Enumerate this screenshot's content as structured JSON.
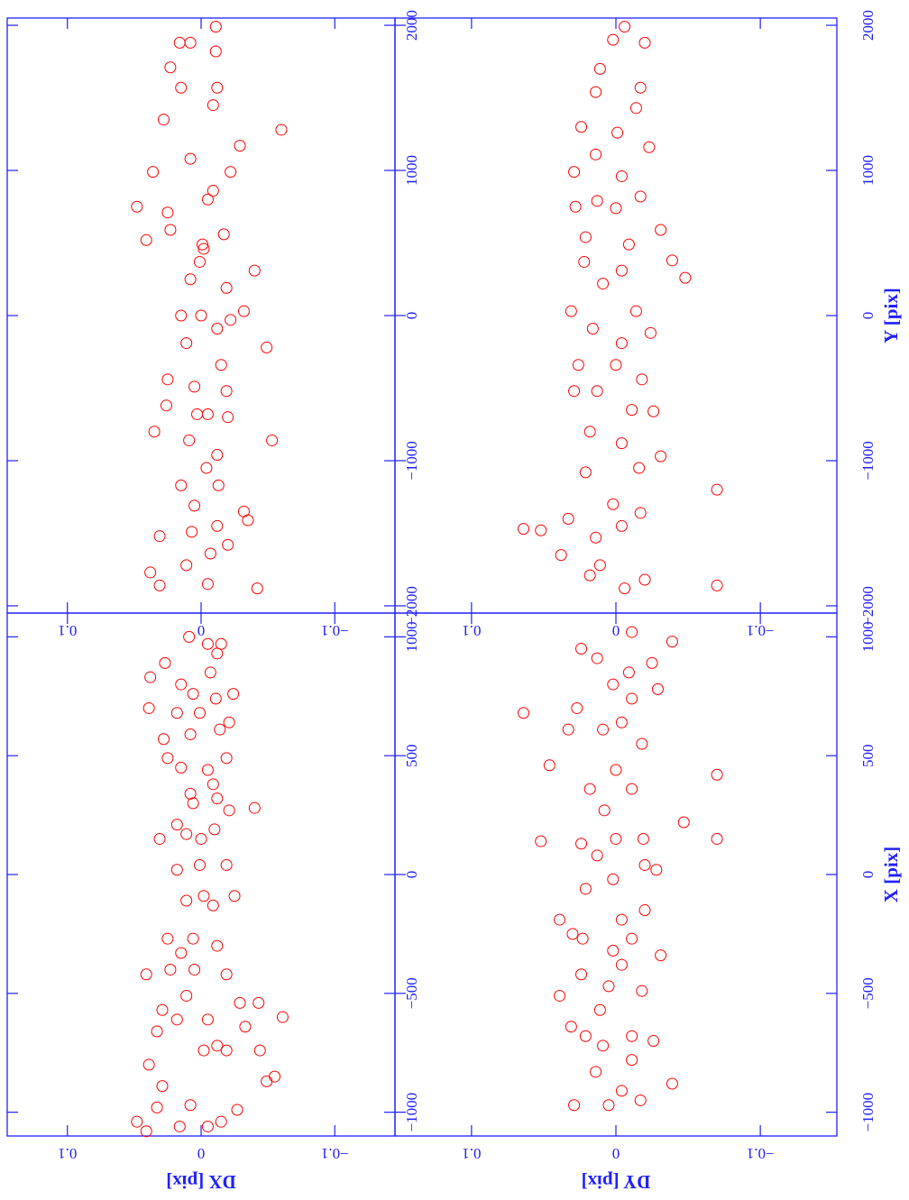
{
  "chart_data": [
    {
      "type": "scatter",
      "color": "#ff0000",
      "ylabel": "DX [pix]",
      "xlim": [
        -1100,
        1100
      ],
      "xticks": [
        {
          "value": -1000,
          "label": "−1000"
        },
        {
          "value": -500,
          "label": "−500"
        },
        0,
        500,
        1000
      ],
      "ylim": [
        -0.145,
        0.145
      ],
      "yticks": [
        {
          "value": -0.1,
          "label": "−0.1"
        },
        0,
        0.1
      ],
      "x": [
        -1040,
        -1080,
        -980,
        -800,
        -890,
        -1060,
        -1060,
        -1040,
        -970,
        -990,
        -870,
        -850,
        -740,
        -600,
        -740,
        -640,
        -720,
        -740,
        -610,
        -570,
        -660,
        -610,
        -540,
        -540,
        -510,
        -400,
        -420,
        -400,
        -420,
        -330,
        -300,
        -270,
        -270,
        -130,
        -90,
        -110,
        20,
        40,
        40,
        -90,
        150,
        170,
        190,
        210,
        150,
        270,
        300,
        320,
        280,
        380,
        340,
        450,
        490,
        440,
        490,
        610,
        640,
        590,
        570,
        680,
        700,
        680,
        740,
        760,
        760,
        850,
        930,
        800,
        830,
        1000,
        970,
        970,
        890
      ],
      "values": [
        0.048,
        0.041,
        0.033,
        0.039,
        0.029,
        0.016,
        -0.005,
        -0.015,
        0.008,
        -0.027,
        -0.049,
        -0.055,
        -0.044,
        -0.061,
        -0.019,
        -0.033,
        -0.012,
        -0.002,
        0.018,
        0.029,
        0.033,
        -0.005,
        -0.029,
        -0.043,
        0.011,
        0.005,
        -0.019,
        0.023,
        0.041,
        0.015,
        -0.012,
        0.025,
        0.006,
        -0.009,
        -0.025,
        0.011,
        0.018,
        0.001,
        -0.019,
        -0.002,
        0,
        0.011,
        -0.01,
        0.018,
        0.031,
        -0.021,
        0.006,
        -0.012,
        -0.04,
        -0.009,
        0.008,
        0.015,
        -0.019,
        -0.005,
        0.025,
        -0.014,
        -0.021,
        0.008,
        0.028,
        0.018,
        0.039,
        0.001,
        -0.011,
        -0.024,
        0.006,
        -0.007,
        -0.012,
        0.015,
        0.038,
        0.009,
        -0.005,
        -0.015,
        0.027
      ]
    },
    {
      "type": "scatter",
      "color": "#ff0000",
      "xlim": [
        -2050,
        2050
      ],
      "xticks": [
        {
          "value": -2000,
          "label": "−2000"
        },
        {
          "value": -1000,
          "label": "−1000"
        },
        0,
        1000,
        2000
      ],
      "ylim": [
        -0.145,
        0.145
      ],
      "yticks": [
        {
          "value": -0.1,
          "label": "−0.1"
        },
        0,
        0.1
      ],
      "x": [
        1990,
        1880,
        1880,
        1710,
        1570,
        1570,
        1280,
        1350,
        1450,
        1170,
        1080,
        990,
        990,
        860,
        750,
        710,
        800,
        520,
        560,
        460,
        310,
        370,
        190,
        250,
        30,
        0,
        -30,
        -90,
        -220,
        -190,
        -340,
        -440,
        -490,
        -520,
        -620,
        -680,
        -700,
        -800,
        -860,
        -860,
        -960,
        -1050,
        -1170,
        -1170,
        -1310,
        -1410,
        -1520,
        -1450,
        -1490,
        -1640,
        -1720,
        -1770,
        -1880,
        -1860,
        -1850,
        -1580,
        -1350,
        -680,
        490,
        0,
        590,
        1820
      ],
      "values": [
        -0.011,
        0.016,
        0.008,
        0.023,
        -0.012,
        0.015,
        -0.06,
        0.028,
        -0.009,
        -0.029,
        0.008,
        0.036,
        -0.022,
        -0.009,
        0.048,
        0.025,
        -0.005,
        0.041,
        -0.017,
        -0.002,
        -0.04,
        0.001,
        -0.019,
        0.008,
        -0.032,
        0.015,
        -0.022,
        -0.012,
        -0.049,
        0.011,
        -0.015,
        0.025,
        0.005,
        -0.019,
        0.026,
        -0.005,
        -0.02,
        0.035,
        0.009,
        -0.053,
        -0.012,
        -0.004,
        -0.013,
        0.015,
        0.005,
        -0.035,
        0.031,
        -0.012,
        0.007,
        -0.007,
        0.011,
        0.038,
        -0.042,
        0.031,
        -0.005,
        -0.02,
        -0.032,
        0.003,
        -0.001,
        0,
        0.023,
        -0.011
      ]
    },
    {
      "type": "scatter",
      "color": "#ff0000",
      "xlabel": "X [pix]",
      "ylabel": "DY [pix]",
      "xlim": [
        -1100,
        1100
      ],
      "xticks": [
        {
          "value": -1000,
          "label": "−1000"
        },
        {
          "value": -500,
          "label": "−500"
        },
        0,
        500,
        1000
      ],
      "ylim": [
        -0.153,
        0.153
      ],
      "yticks": [
        {
          "value": -0.1,
          "label": "−0.1"
        },
        0,
        0.1
      ],
      "x": [
        -880,
        -970,
        -970,
        -950,
        -830,
        -640,
        -680,
        -570,
        -420,
        -380,
        -490,
        -340,
        -320,
        -270,
        -270,
        -250,
        -190,
        -190,
        -150,
        -60,
        -20,
        40,
        20,
        80,
        130,
        140,
        150,
        150,
        220,
        150,
        270,
        360,
        360,
        460,
        440,
        420,
        550,
        610,
        610,
        640,
        680,
        700,
        780,
        740,
        800,
        890,
        910,
        1020,
        980,
        950,
        850,
        -720,
        -780,
        -910,
        -680,
        -700,
        -470,
        -510
      ],
      "values": [
        -0.039,
        0.029,
        0.005,
        -0.017,
        0.014,
        0.031,
        -0.011,
        0.011,
        0.024,
        -0.004,
        -0.018,
        -0.031,
        0.002,
        0.023,
        -0.011,
        0.03,
        0.039,
        -0.004,
        -0.02,
        0.021,
        0.002,
        -0.02,
        -0.028,
        0.013,
        0.024,
        0.052,
        -0.019,
        -0.07,
        -0.047,
        0,
        0.008,
        -0.011,
        0.018,
        0.046,
        0,
        -0.07,
        -0.018,
        0.009,
        0.033,
        -0.004,
        0.064,
        0.027,
        -0.029,
        -0.011,
        0.002,
        -0.025,
        0.013,
        -0.011,
        -0.039,
        0.024,
        -0.009,
        0.009,
        -0.011,
        -0.004,
        0.021,
        -0.026,
        0.005,
        0.039
      ]
    },
    {
      "type": "scatter",
      "color": "#ff0000",
      "xlabel": "Y [pix]",
      "xlim": [
        -2050,
        2050
      ],
      "xticks": [
        {
          "value": -2000,
          "label": "−2000"
        },
        {
          "value": -1000,
          "label": "−1000"
        },
        0,
        1000,
        2000
      ],
      "ylim": [
        -0.153,
        0.153
      ],
      "yticks": [
        {
          "value": -0.1,
          "label": "−0.1"
        },
        0,
        0.1
      ],
      "x": [
        1990,
        1900,
        1880,
        1700,
        1570,
        1540,
        1300,
        1430,
        1260,
        1160,
        1110,
        990,
        960,
        820,
        750,
        790,
        740,
        590,
        540,
        490,
        380,
        260,
        370,
        310,
        220,
        30,
        30,
        -90,
        -120,
        -190,
        -340,
        -340,
        -440,
        -520,
        -520,
        -650,
        -660,
        -800,
        -880,
        -970,
        -1080,
        -1050,
        -1200,
        -1300,
        -1360,
        -1470,
        -1480,
        -1400,
        -1650,
        -1530,
        -1450,
        -1720,
        -1790,
        -1820,
        -1860,
        -1880
      ],
      "values": [
        -0.006,
        0.002,
        -0.02,
        0.011,
        -0.017,
        0.014,
        0.024,
        -0.014,
        -0.001,
        -0.023,
        0.014,
        0.029,
        -0.004,
        -0.017,
        0.028,
        0.013,
        0,
        -0.031,
        0.021,
        -0.009,
        -0.039,
        -0.048,
        0.022,
        -0.004,
        0.009,
        0.031,
        -0.014,
        0.016,
        -0.024,
        -0.004,
        0.026,
        0,
        -0.018,
        0.013,
        0.029,
        -0.011,
        -0.026,
        0.018,
        -0.004,
        -0.031,
        0.021,
        -0.016,
        -0.07,
        0.002,
        -0.017,
        0.064,
        0.052,
        0.033,
        0.038,
        0.014,
        -0.004,
        0.011,
        0.018,
        -0.02,
        -0.07,
        -0.006
      ]
    }
  ]
}
